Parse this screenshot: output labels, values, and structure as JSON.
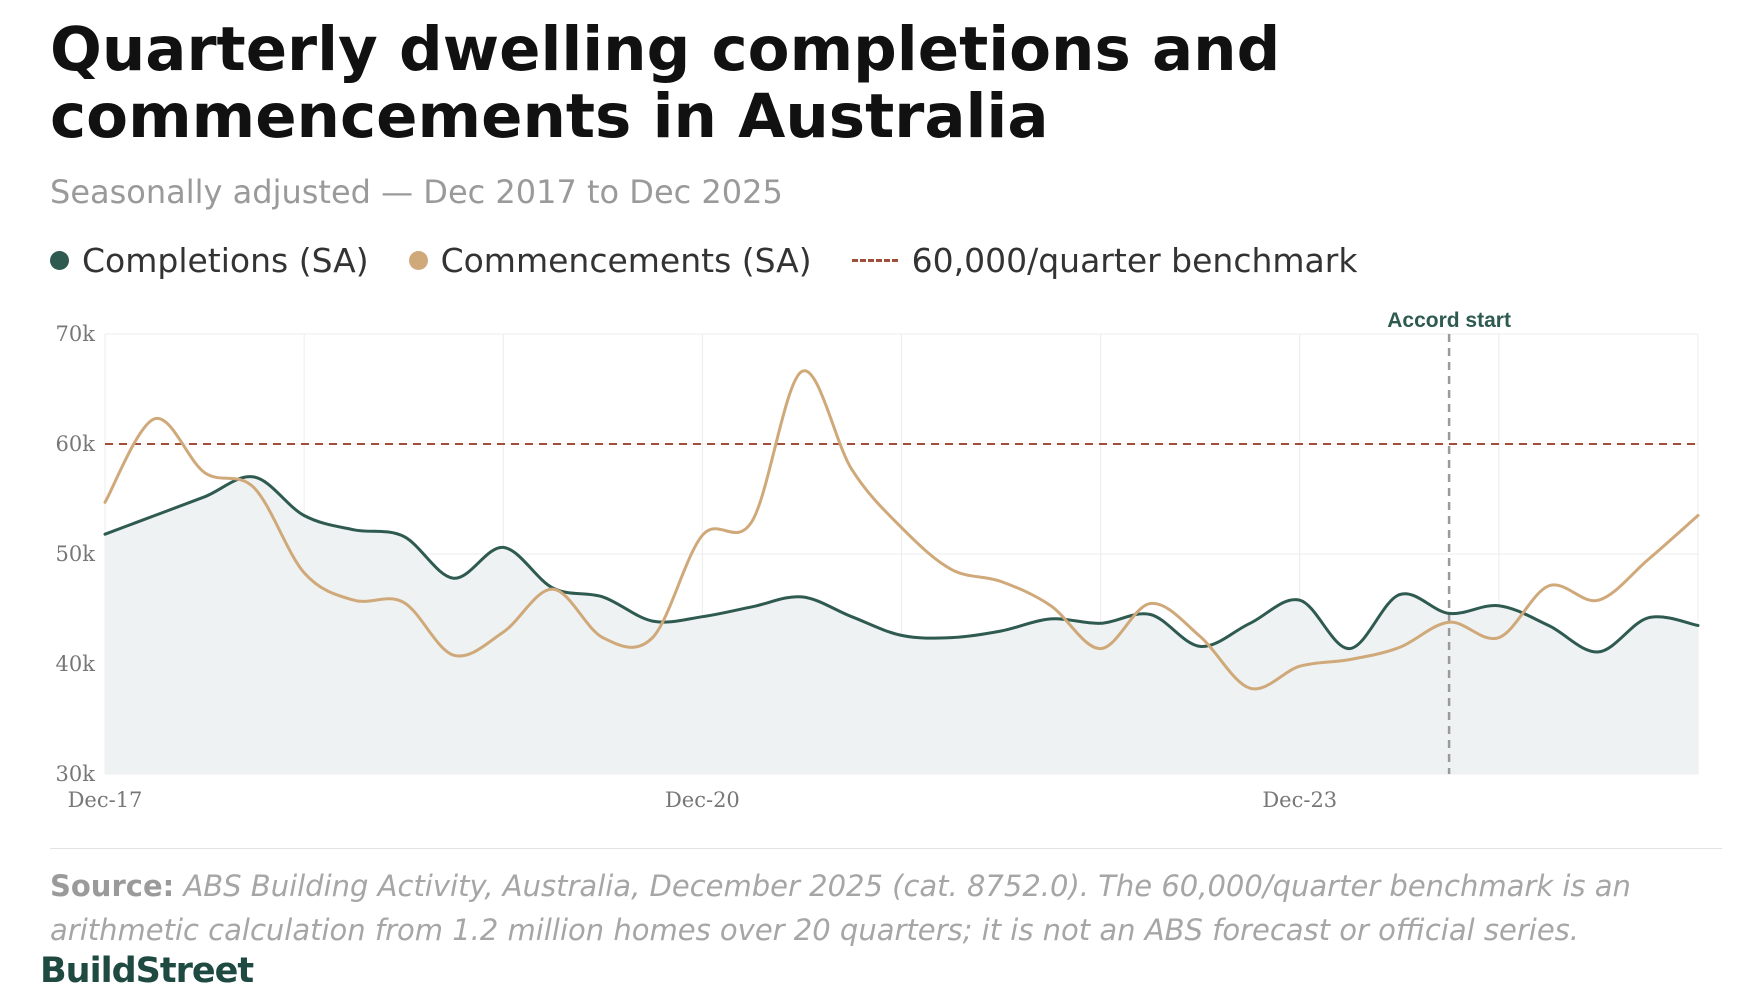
{
  "header": {
    "title": "Quarterly dwelling completions and commencements in Australia",
    "subtitle": "Seasonally adjusted — Dec 2017 to Dec 2025"
  },
  "legend": {
    "completions": "Completions (SA)",
    "commencements": "Commencements (SA)",
    "benchmark": "60,000/quarter benchmark"
  },
  "colors": {
    "completions": "#2e5a50",
    "commencements": "#d0a97a",
    "benchmark": "#a0503a",
    "area_fill": "#eef2f2",
    "annotation_line": "#9a9a9a",
    "annotation_text": "#2e5a50",
    "logo": "#1f4a42"
  },
  "chart_data": {
    "type": "line",
    "title": "Quarterly dwelling completions and commencements in Australia",
    "subtitle": "Seasonally adjusted — Dec 2017 to Dec 2025",
    "xlabel": "",
    "ylabel": "",
    "x": [
      "Dec-17",
      "Mar-18",
      "Jun-18",
      "Sep-18",
      "Dec-18",
      "Mar-19",
      "Jun-19",
      "Sep-19",
      "Dec-19",
      "Mar-20",
      "Jun-20",
      "Sep-20",
      "Dec-20",
      "Mar-21",
      "Jun-21",
      "Sep-21",
      "Dec-21",
      "Mar-22",
      "Jun-22",
      "Sep-22",
      "Dec-22",
      "Mar-23",
      "Jun-23",
      "Sep-23",
      "Dec-23",
      "Mar-24",
      "Jun-24",
      "Sep-24",
      "Dec-24",
      "Mar-25",
      "Jun-25",
      "Sep-25",
      "Dec-25"
    ],
    "x_tick_labels": [
      "Dec-17",
      "Dec-20",
      "Dec-23"
    ],
    "y_ticks": [
      30000,
      40000,
      50000,
      60000,
      70000
    ],
    "y_tick_labels": [
      "30k",
      "40k",
      "50k",
      "60k",
      "70k"
    ],
    "ylim": [
      30000,
      70000
    ],
    "grid": true,
    "legend_position": "top-left",
    "series": [
      {
        "name": "Completions (SA)",
        "values": [
          51800,
          53500,
          55200,
          57000,
          53500,
          52200,
          51600,
          47800,
          50600,
          46900,
          46100,
          43900,
          44300,
          45200,
          46100,
          44300,
          42600,
          42400,
          43000,
          44100,
          43700,
          44500,
          41600,
          43700,
          45800,
          41400,
          46300,
          44600,
          45300,
          43500,
          41100,
          44200,
          43500
        ]
      },
      {
        "name": "Commencements (SA)",
        "values": [
          54700,
          62300,
          57400,
          56000,
          48300,
          45800,
          45600,
          40800,
          42900,
          46800,
          42400,
          42400,
          51700,
          53000,
          66600,
          57700,
          52400,
          48600,
          47500,
          45300,
          41400,
          45500,
          42500,
          37800,
          39800,
          40400,
          41500,
          43800,
          42400,
          47100,
          45800,
          49500,
          53500
        ]
      }
    ],
    "reference_lines": [
      {
        "type": "horizontal",
        "value": 60000,
        "label": "60,000/quarter benchmark"
      },
      {
        "type": "vertical",
        "x": "Sep-24",
        "label": "Accord start"
      }
    ]
  },
  "footer": {
    "source_label": "Source:",
    "source_text": "ABS Building Activity, Australia, December 2025 (cat. 8752.0). The 60,000/quarter benchmark is an arithmetic calculation from 1.2 million homes over 20 quarters; it is not an ABS forecast or official series.",
    "logo": "BuildStreet"
  }
}
